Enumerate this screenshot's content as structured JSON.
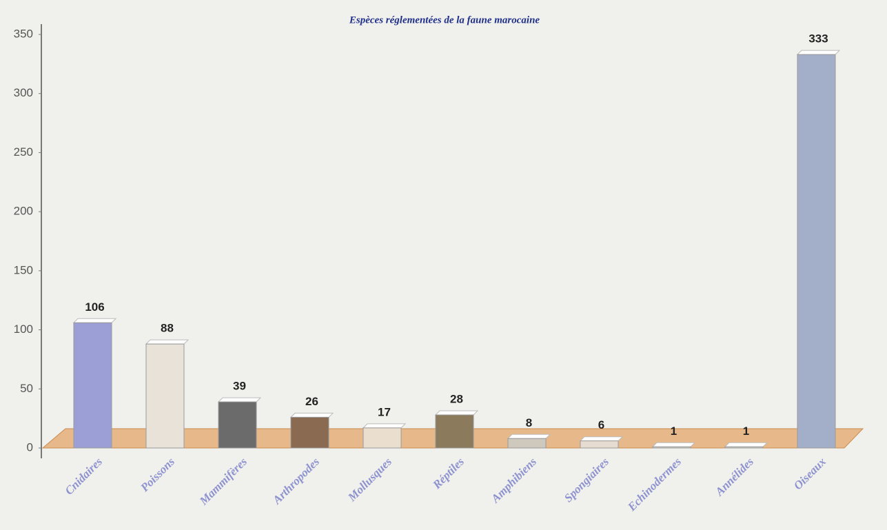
{
  "chart_data": {
    "type": "bar",
    "title": "Espèces réglementées de la faune marocaine",
    "categories": [
      "Cnidaires",
      "Poissons",
      "Mammifères",
      "Arthropodes",
      "Mollusques",
      "Réptiles",
      "Amphibiens",
      "Spongiaires",
      "Echinodermes",
      "Annélides",
      "Oiseaux"
    ],
    "values": [
      106,
      88,
      39,
      26,
      17,
      28,
      8,
      6,
      1,
      1,
      333
    ],
    "colors": [
      "#9c9fd6",
      "#e8e2d8",
      "#6b6b6b",
      "#8a6a50",
      "#eadfce",
      "#8c7a5c",
      "#cfc8bc",
      "#e6ddd0",
      "#d8d2c8",
      "#d8d2c8",
      "#a3aec8"
    ],
    "ylim": [
      0,
      350
    ],
    "yticks": [
      0,
      50,
      100,
      150,
      200,
      250,
      300,
      350
    ]
  }
}
